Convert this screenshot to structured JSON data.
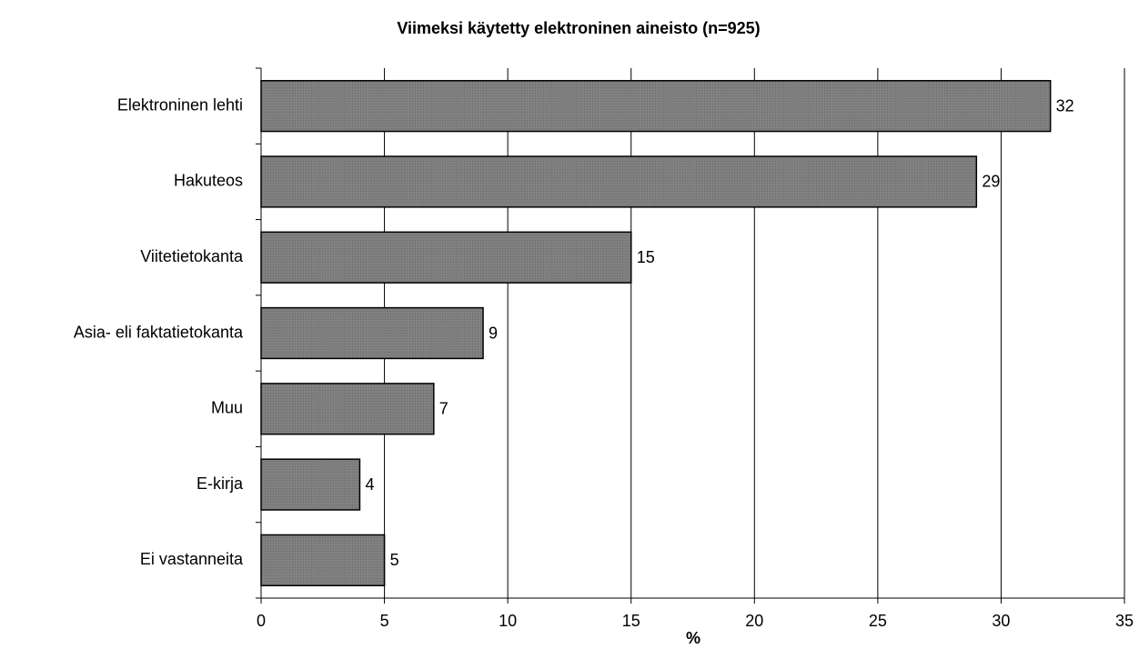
{
  "chart_data": {
    "type": "bar",
    "orientation": "horizontal",
    "title": "Viimeksi käytetty elektroninen aineisto (n=925)",
    "xlabel": "%",
    "categories": [
      "Elektroninen lehti",
      "Hakuteos",
      "Viitetietokanta",
      "Asia- eli faktatietokanta",
      "Muu",
      "E-kirja",
      "Ei vastanneita"
    ],
    "values": [
      32,
      29,
      15,
      9,
      7,
      4,
      5
    ],
    "color": "#808080",
    "xlim": [
      0,
      35
    ],
    "xticks": [
      0,
      5,
      10,
      15,
      20,
      25,
      30,
      35
    ],
    "grid": true
  }
}
